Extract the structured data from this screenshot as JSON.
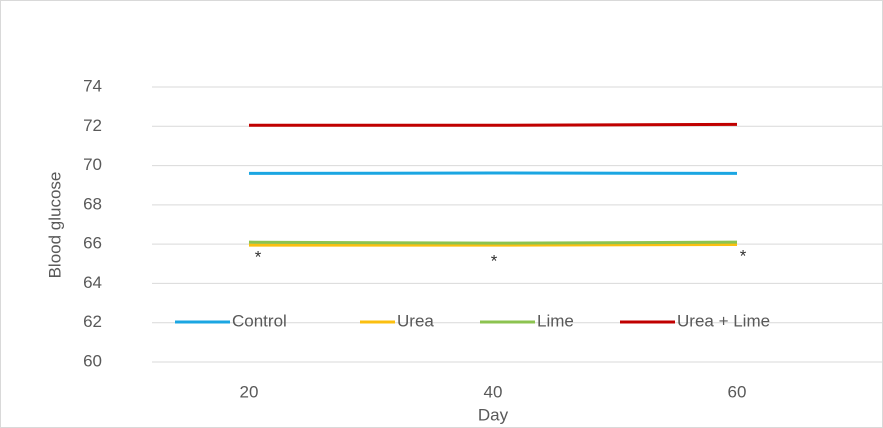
{
  "chart_data": {
    "type": "line",
    "x_label": "Day",
    "y_label": "Blood glucose",
    "categories": [
      "20",
      "40",
      "60"
    ],
    "series": [
      {
        "name": "Control",
        "color": "#1ba6e2",
        "values": [
          69.6,
          69.62,
          69.6
        ]
      },
      {
        "name": "Urea",
        "color": "#fbbf10",
        "values": [
          65.95,
          65.95,
          65.98
        ]
      },
      {
        "name": "Lime",
        "color": "#8cc350",
        "values": [
          66.1,
          66.05,
          66.1
        ]
      },
      {
        "name": "Urea + Lime",
        "color": "#c00000",
        "values": [
          72.05,
          72.05,
          72.1
        ]
      }
    ],
    "annotations": [
      "*",
      "*",
      "*"
    ],
    "ylim": [
      60,
      74
    ],
    "yticks": [
      60,
      62,
      64,
      66,
      68,
      70,
      72,
      74
    ],
    "grid": true
  }
}
